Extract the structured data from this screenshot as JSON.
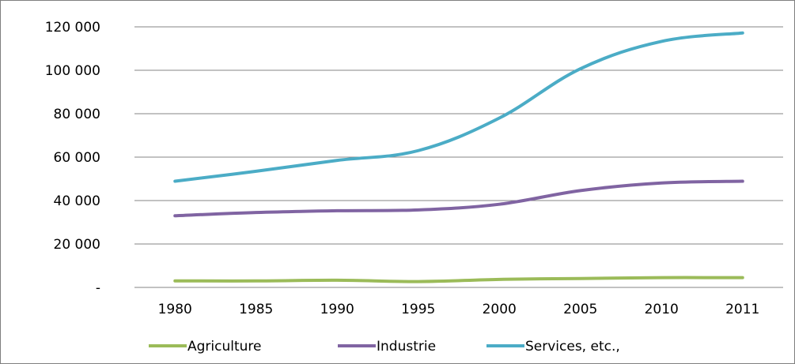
{
  "chart_data": {
    "type": "line",
    "title": "",
    "xlabel": "",
    "ylabel": "",
    "categories": [
      "1980",
      "1985",
      "1990",
      "1995",
      "2000",
      "2005",
      "2010",
      "2011"
    ],
    "ylim": [
      0,
      120000
    ],
    "yticks": [
      0,
      20000,
      40000,
      60000,
      80000,
      100000,
      120000
    ],
    "ytick_labels": [
      "-",
      "20 000",
      "40 000",
      "60 000",
      "80 000",
      "100 000",
      "120 000"
    ],
    "grid": "horizontal",
    "legend_position": "bottom",
    "series": [
      {
        "name": "Agriculture",
        "color": "#9bbb59",
        "values": [
          3000,
          3000,
          3300,
          2700,
          3700,
          4100,
          4500,
          4500
        ]
      },
      {
        "name": "Industrie",
        "color": "#8064a2",
        "values": [
          33000,
          34500,
          35300,
          35700,
          38300,
          44600,
          48100,
          48900
        ]
      },
      {
        "name": "Services, etc.,",
        "color": "#4bacc6",
        "values": [
          48900,
          53500,
          58500,
          63000,
          78000,
          100700,
          113300,
          117200
        ]
      }
    ]
  }
}
